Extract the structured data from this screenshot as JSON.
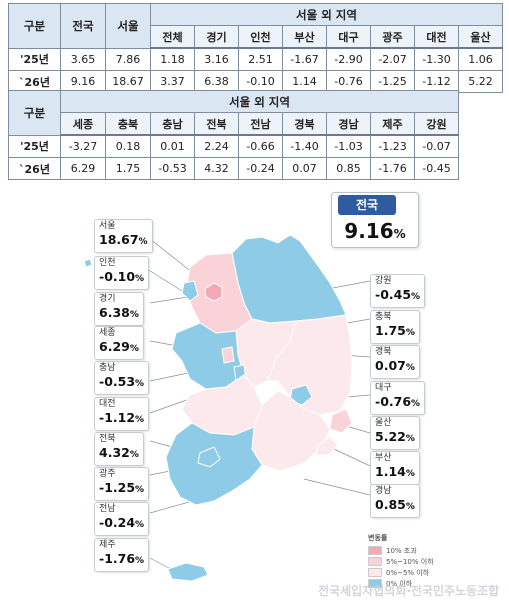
{
  "table1": {
    "h_gubun": "구분",
    "h_national": "전국",
    "h_seoul": "서울",
    "h_outside": "서울 외 지역",
    "subs": [
      "전체",
      "경기",
      "인천",
      "부산",
      "대구",
      "광주",
      "대전",
      "울산"
    ],
    "rows": [
      {
        "year": "'25년",
        "national": "3.65",
        "seoul": "7.86",
        "vals": [
          "1.18",
          "3.16",
          "2.51",
          "-1.67",
          "-2.90",
          "-2.07",
          "-1.30",
          "1.06"
        ]
      },
      {
        "year": "`26년",
        "national": "9.16",
        "seoul": "18.67",
        "vals": [
          "3.37",
          "6.38",
          "-0.10",
          "1.14",
          "-0.76",
          "-1.25",
          "-1.12",
          "5.22"
        ]
      }
    ]
  },
  "table2": {
    "h_gubun": "구분",
    "h_outside": "서울 외 지역",
    "subs": [
      "세종",
      "충북",
      "충남",
      "전북",
      "전남",
      "경북",
      "경남",
      "제주",
      "강원"
    ],
    "rows": [
      {
        "year": "'25년",
        "vals": [
          "-3.27",
          "0.18",
          "0.01",
          "2.24",
          "-0.66",
          "-1.40",
          "-1.03",
          "-1.23",
          "-0.07"
        ]
      },
      {
        "year": "`26년",
        "vals": [
          "6.29",
          "1.75",
          "-0.53",
          "4.32",
          "-0.24",
          "0.07",
          "0.85",
          "-1.76",
          "-0.45"
        ]
      }
    ]
  },
  "national": {
    "label": "전국",
    "value": "9.16",
    "unit": "%"
  },
  "callouts": [
    {
      "id": "seoul",
      "name": "서울",
      "value": "18.67",
      "unit": "%"
    },
    {
      "id": "incheon",
      "name": "인천",
      "value": "-0.10",
      "unit": "%"
    },
    {
      "id": "gyeonggi",
      "name": "경기",
      "value": "6.38",
      "unit": "%"
    },
    {
      "id": "sejong",
      "name": "세종",
      "value": "6.29",
      "unit": "%"
    },
    {
      "id": "chungnam",
      "name": "충남",
      "value": "-0.53",
      "unit": "%"
    },
    {
      "id": "daejeon",
      "name": "대전",
      "value": "-1.12",
      "unit": "%"
    },
    {
      "id": "jeonbuk",
      "name": "전북",
      "value": "4.32",
      "unit": "%"
    },
    {
      "id": "gwangju",
      "name": "광주",
      "value": "-1.25",
      "unit": "%"
    },
    {
      "id": "jeonnam",
      "name": "전남",
      "value": "-0.24",
      "unit": "%"
    },
    {
      "id": "jeju",
      "name": "제주",
      "value": "-1.76",
      "unit": "%"
    },
    {
      "id": "gangwon",
      "name": "강원",
      "value": "-0.45",
      "unit": "%"
    },
    {
      "id": "chungbuk",
      "name": "충북",
      "value": "1.75",
      "unit": "%"
    },
    {
      "id": "gyeongbuk",
      "name": "경북",
      "value": "0.07",
      "unit": "%"
    },
    {
      "id": "daegu",
      "name": "대구",
      "value": "-0.76",
      "unit": "%"
    },
    {
      "id": "ulsan",
      "name": "울산",
      "value": "5.22",
      "unit": "%"
    },
    {
      "id": "busan",
      "name": "부산",
      "value": "1.14",
      "unit": "%"
    },
    {
      "id": "gyeongnam",
      "name": "경남",
      "value": "0.85",
      "unit": "%"
    }
  ],
  "legend": {
    "title": "변동률",
    "items": [
      {
        "label": "10% 초과",
        "color": "#f4a8b4"
      },
      {
        "label": "5%~10% 이하",
        "color": "#f9d3d8"
      },
      {
        "label": "0%~5% 이하",
        "color": "#fbe9ec"
      },
      {
        "label": "0% 이하",
        "color": "#8ecbe6"
      }
    ]
  },
  "colors": {
    "over10": "#f4a8b4",
    "five_to_ten": "#f9d3d8",
    "zero_to_five": "#fbe9ec",
    "below0": "#8ecbe6",
    "header": "#dbe6f3",
    "tag": "#2f5c9e"
  },
  "watermark": "전국세입자협의회·전국민주노동조합"
}
